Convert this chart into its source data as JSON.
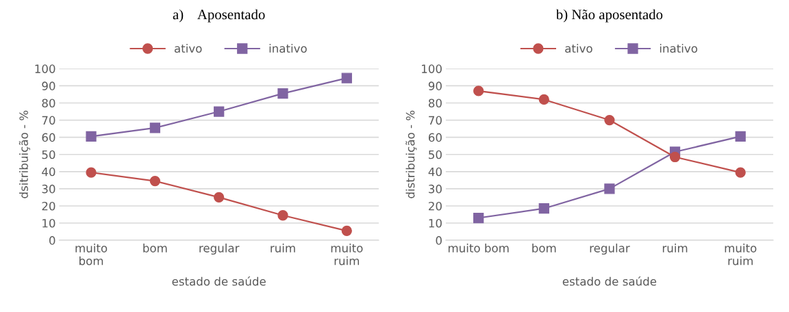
{
  "chart_data": [
    {
      "type": "line",
      "title": "a)    Aposentado",
      "xlabel": "estado de saúde",
      "ylabel": "dsitribuição - %",
      "categories": [
        "muito bom",
        "bom",
        "regular",
        "ruim",
        "muito ruim"
      ],
      "series": [
        {
          "name": "ativo",
          "color": "#c0504d",
          "marker": "circle",
          "values": [
            39.5,
            34.5,
            25,
            14.5,
            5.5
          ]
        },
        {
          "name": "inativo",
          "color": "#8064a2",
          "marker": "square",
          "values": [
            60.5,
            65.5,
            75,
            85.5,
            94.5
          ]
        }
      ],
      "ylim": [
        0,
        100
      ],
      "yticks": [
        0,
        10,
        20,
        30,
        40,
        50,
        60,
        70,
        80,
        90,
        100
      ],
      "grid": "y",
      "legend": "top"
    },
    {
      "type": "line",
      "title": "b) Não aposentado",
      "xlabel": "estado de saúde",
      "ylabel": "distribuição - %",
      "categories": [
        "muito bom",
        "bom",
        "regular",
        "ruim",
        "muito ruim"
      ],
      "series": [
        {
          "name": "ativo",
          "color": "#c0504d",
          "marker": "circle",
          "values": [
            87,
            82,
            70,
            48.5,
            39.5
          ]
        },
        {
          "name": "inativo",
          "color": "#8064a2",
          "marker": "square",
          "values": [
            13,
            18.5,
            30,
            51.5,
            60.5
          ]
        }
      ],
      "ylim": [
        0,
        100
      ],
      "yticks": [
        0,
        10,
        20,
        30,
        40,
        50,
        60,
        70,
        80,
        90,
        100
      ],
      "grid": "y",
      "legend": "top"
    }
  ]
}
